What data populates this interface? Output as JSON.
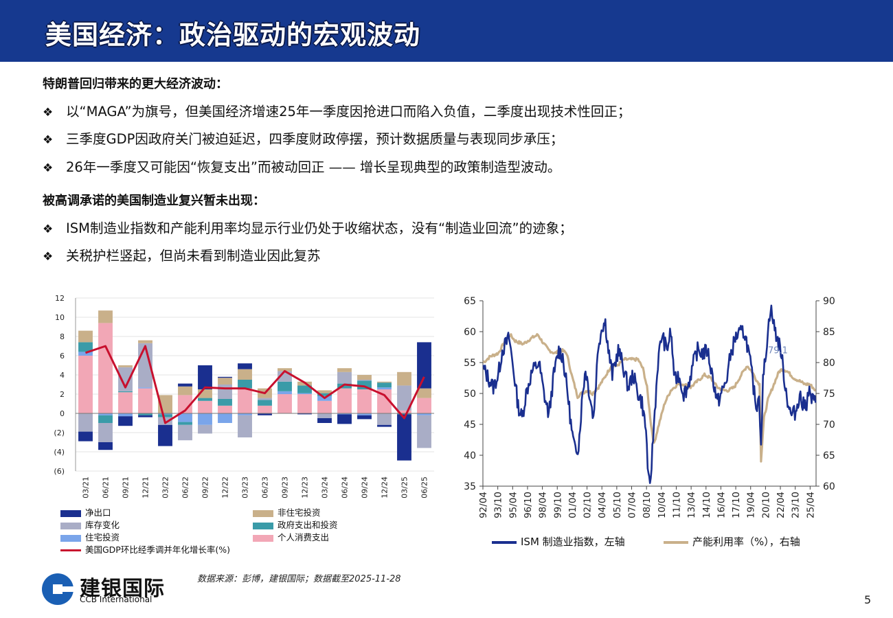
{
  "header": {
    "title": "美国经济：政治驱动的宏观波动"
  },
  "sections": [
    {
      "heading": "特朗普回归带来的更大经济波动：",
      "bullets": [
        "以“MAGA”为旗号，但美国经济增速25年一季度因抢进口而陷入负值，二季度出现技术性回正；",
        "三季度GDP因政府关门被迫延迟，四季度财政停摆，预计数据质量与表现同步承压；",
        "26年一季度又可能因“恢复支出”而被动回正 —— 增长呈现典型的政策制造型波动。"
      ]
    },
    {
      "heading": "被高调承诺的美国制造业复兴暂未出现：",
      "bullets": [
        "ISM制造业指数和产能利用率均显示行业仍处于收缩状态，没有“制造业回流”的迹象；",
        "关税护栏竖起，但尚未看到制造业因此复苏"
      ]
    }
  ],
  "bullet_marker": "❖",
  "chart_data": [
    {
      "type": "bar",
      "stacked": true,
      "categories": [
        "03/21",
        "06/21",
        "09/21",
        "12/21",
        "03/22",
        "06/22",
        "09/22",
        "12/22",
        "03/23",
        "06/23",
        "09/23",
        "12/23",
        "03/24",
        "06/24",
        "09/24",
        "12/24",
        "03/25",
        "06/25"
      ],
      "ylim": [
        -6,
        12
      ],
      "yticks": [
        "12",
        "10",
        "8",
        "6",
        "4",
        "2",
        "0",
        "(2)",
        "(4)",
        "(6)"
      ],
      "series": [
        {
          "name": "个人消费支出",
          "color": "#f2a7b6",
          "values": [
            6.0,
            9.4,
            2.2,
            2.6,
            0.0,
            1.9,
            1.3,
            0.8,
            2.6,
            0.8,
            2.0,
            2.0,
            1.3,
            2.6,
            2.5,
            2.5,
            0.3,
            1.6
          ]
        },
        {
          "name": "住宅投资",
          "color": "#7aa5ea",
          "values": [
            0.4,
            -0.2,
            -0.3,
            0.1,
            -0.1,
            -0.9,
            -1.2,
            -1.0,
            -0.2,
            0.0,
            0.3,
            0.1,
            0.5,
            -0.1,
            -0.2,
            0.2,
            0.0,
            -0.2
          ]
        },
        {
          "name": "政府支出和投资",
          "color": "#3a9ba8",
          "values": [
            1.0,
            -0.8,
            0.1,
            -0.2,
            -0.3,
            -0.3,
            0.3,
            0.7,
            0.9,
            0.6,
            1.0,
            0.8,
            0.3,
            0.5,
            0.9,
            0.5,
            -0.1,
            0.0
          ]
        },
        {
          "name": "库存变化",
          "color": "#a9adc6",
          "values": [
            -1.9,
            -2.0,
            2.5,
            4.6,
            -0.8,
            -1.6,
            -0.9,
            1.5,
            -2.3,
            0.2,
            1.1,
            0.0,
            -0.5,
            1.2,
            0.1,
            -1.2,
            2.6,
            -3.4
          ]
        },
        {
          "name": "非住宅投资",
          "color": "#c9b08a",
          "values": [
            1.2,
            1.3,
            0.2,
            0.3,
            1.9,
            0.9,
            0.9,
            0.7,
            1.1,
            1.0,
            0.3,
            0.4,
            0.3,
            0.4,
            0.5,
            0.1,
            1.4,
            1.0
          ]
        },
        {
          "name": "净出口",
          "color": "#1a2f8f",
          "values": [
            -1.0,
            -0.8,
            -1.0,
            -0.2,
            -2.2,
            0.3,
            2.5,
            0.1,
            0.6,
            -0.2,
            0.0,
            -0.1,
            -0.5,
            -1.0,
            -0.4,
            -0.2,
            -4.8,
            4.8
          ]
        }
      ],
      "line": {
        "name": "美国GDP环比经季调并年化增长率(%)",
        "color": "#c8102e",
        "values": [
          6.3,
          7.0,
          2.7,
          7.0,
          -1.0,
          0.3,
          2.7,
          2.6,
          2.6,
          2.1,
          4.4,
          3.2,
          1.6,
          3.0,
          2.8,
          1.9,
          -0.5,
          3.8
        ]
      },
      "legend": {
        "position": "bottom",
        "columns": 2
      }
    },
    {
      "type": "line",
      "x_tick_labels": [
        "92/04",
        "93/10",
        "95/04",
        "96/10",
        "98/04",
        "99/10",
        "01/04",
        "02/10",
        "04/04",
        "05/10",
        "07/04",
        "08/10",
        "10/04",
        "11/10",
        "13/04",
        "14/10",
        "16/04",
        "17/10",
        "19/04",
        "20/10",
        "22/04",
        "23/10",
        "25/04"
      ],
      "x_range": [
        "1992-04",
        "2025-10"
      ],
      "y_left": {
        "ylim": [
          35,
          65
        ],
        "ticks": [
          "65",
          "60",
          "55",
          "50",
          "45",
          "40",
          "35"
        ]
      },
      "y_right": {
        "ylim": [
          60,
          90
        ],
        "ticks": [
          "90",
          "85",
          "80",
          "75",
          "70",
          "65",
          "60"
        ]
      },
      "annotation": "79.1",
      "series": [
        {
          "name": "ISM 制造业指数，左轴",
          "axis": "left",
          "color": "#1a2f8f",
          "anchors": [
            [
              1992.3,
              54
            ],
            [
              1992.8,
              52.5
            ],
            [
              1993.3,
              51
            ],
            [
              1993.8,
              53
            ],
            [
              1994.2,
              57
            ],
            [
              1994.9,
              59
            ],
            [
              1995.4,
              53
            ],
            [
              1995.8,
              48
            ],
            [
              1996.2,
              46
            ],
            [
              1996.6,
              50
            ],
            [
              1997.2,
              53.5
            ],
            [
              1997.9,
              55
            ],
            [
              1998.4,
              50
            ],
            [
              1998.9,
              46.5
            ],
            [
              1999.4,
              53
            ],
            [
              1999.9,
              57
            ],
            [
              2000.3,
              56
            ],
            [
              2000.8,
              50
            ],
            [
              2001.2,
              44
            ],
            [
              2001.5,
              41
            ],
            [
              2001.9,
              41.5
            ],
            [
              2002.3,
              50
            ],
            [
              2002.6,
              54
            ],
            [
              2003.0,
              50
            ],
            [
              2003.4,
              46
            ],
            [
              2003.9,
              58
            ],
            [
              2004.3,
              61
            ],
            [
              2004.6,
              61.5
            ],
            [
              2004.9,
              57
            ],
            [
              2005.3,
              53
            ],
            [
              2005.9,
              57
            ],
            [
              2006.3,
              55
            ],
            [
              2006.9,
              51
            ],
            [
              2007.4,
              53
            ],
            [
              2007.9,
              50
            ],
            [
              2008.3,
              48.5
            ],
            [
              2008.7,
              44
            ],
            [
              2008.95,
              36
            ],
            [
              2009.1,
              34.5
            ],
            [
              2009.5,
              45
            ],
            [
              2009.9,
              55
            ],
            [
              2010.3,
              59.5
            ],
            [
              2010.8,
              57
            ],
            [
              2011.2,
              60
            ],
            [
              2011.6,
              52
            ],
            [
              2012.0,
              53
            ],
            [
              2012.5,
              50
            ],
            [
              2012.9,
              51
            ],
            [
              2013.5,
              55
            ],
            [
              2013.9,
              57
            ],
            [
              2014.5,
              56.5
            ],
            [
              2014.9,
              57
            ],
            [
              2015.5,
              52
            ],
            [
              2015.9,
              48.5
            ],
            [
              2016.3,
              50
            ],
            [
              2016.8,
              52
            ],
            [
              2017.2,
              56
            ],
            [
              2017.7,
              59
            ],
            [
              2018.0,
              59.5
            ],
            [
              2018.6,
              60
            ],
            [
              2018.9,
              58
            ],
            [
              2019.3,
              54
            ],
            [
              2019.7,
              49
            ],
            [
              2019.9,
              48
            ],
            [
              2020.1,
              50
            ],
            [
              2020.3,
              42
            ],
            [
              2020.5,
              52
            ],
            [
              2020.8,
              57
            ],
            [
              2021.0,
              60
            ],
            [
              2021.25,
              64
            ],
            [
              2021.6,
              61
            ],
            [
              2021.9,
              59
            ],
            [
              2022.3,
              57
            ],
            [
              2022.6,
              53
            ],
            [
              2022.9,
              49.5
            ],
            [
              2023.3,
              46.5
            ],
            [
              2023.8,
              47
            ],
            [
              2024.2,
              50
            ],
            [
              2024.5,
              48
            ],
            [
              2024.9,
              48.5
            ],
            [
              2025.1,
              50.5
            ],
            [
              2025.4,
              49
            ],
            [
              2025.8,
              48.5
            ]
          ]
        },
        {
          "name": "产能利用率（%），右轴",
          "axis": "right",
          "color": "#c9b08a",
          "anchors": [
            [
              1992.3,
              80
            ],
            [
              1993.0,
              81
            ],
            [
              1993.8,
              81.5
            ],
            [
              1994.5,
              83.5
            ],
            [
              1995.0,
              84.5
            ],
            [
              1995.5,
              83.5
            ],
            [
              1996.3,
              83
            ],
            [
              1997.2,
              84
            ],
            [
              1997.8,
              84.5
            ],
            [
              1998.4,
              83
            ],
            [
              1998.9,
              82
            ],
            [
              1999.5,
              81.5
            ],
            [
              2000.2,
              82
            ],
            [
              2000.7,
              81.5
            ],
            [
              2001.2,
              78
            ],
            [
              2001.8,
              74.5
            ],
            [
              2002.2,
              75
            ],
            [
              2002.8,
              75.5
            ],
            [
              2003.3,
              75
            ],
            [
              2003.9,
              76
            ],
            [
              2004.5,
              77.5
            ],
            [
              2005.2,
              79.5
            ],
            [
              2005.8,
              79.5
            ],
            [
              2006.5,
              80.5
            ],
            [
              2007.2,
              80.5
            ],
            [
              2007.9,
              80.5
            ],
            [
              2008.4,
              79
            ],
            [
              2008.8,
              76
            ],
            [
              2009.2,
              70
            ],
            [
              2009.5,
              66.8
            ],
            [
              2010.0,
              70
            ],
            [
              2010.6,
              73.5
            ],
            [
              2011.2,
              75.5
            ],
            [
              2011.9,
              76.5
            ],
            [
              2012.5,
              76.5
            ],
            [
              2013.2,
              76
            ],
            [
              2013.9,
              77
            ],
            [
              2014.6,
              78
            ],
            [
              2015.2,
              77.5
            ],
            [
              2015.9,
              76
            ],
            [
              2016.5,
              75.5
            ],
            [
              2017.0,
              75.5
            ],
            [
              2017.6,
              76
            ],
            [
              2018.3,
              78
            ],
            [
              2018.9,
              79.5
            ],
            [
              2019.4,
              78.5
            ],
            [
              2019.9,
              77
            ],
            [
              2020.15,
              76.5
            ],
            [
              2020.3,
              64.2
            ],
            [
              2020.6,
              71
            ],
            [
              2021.0,
              74
            ],
            [
              2021.6,
              76.5
            ],
            [
              2022.1,
              78.5
            ],
            [
              2022.5,
              79
            ],
            [
              2023.0,
              78.5
            ],
            [
              2023.6,
              77.5
            ],
            [
              2024.2,
              77
            ],
            [
              2024.7,
              76.5
            ],
            [
              2025.2,
              76.5
            ],
            [
              2025.8,
              75.5
            ]
          ]
        }
      ],
      "legend": {
        "position": "bottom"
      }
    }
  ],
  "chart1_legend_labels": [
    "净出口",
    "非住宅投资",
    "库存变化",
    "政府支出和投资",
    "住宅投资",
    "个人消费支出",
    "美国GDP环比经季调并年化增长率(%)"
  ],
  "source_text": "数据来源：彭博，建银国际；数据截至2025-11-28",
  "brand": {
    "name": "建银国际",
    "english": "CCB International",
    "color": "#1a5fb4"
  },
  "page_number": "5"
}
